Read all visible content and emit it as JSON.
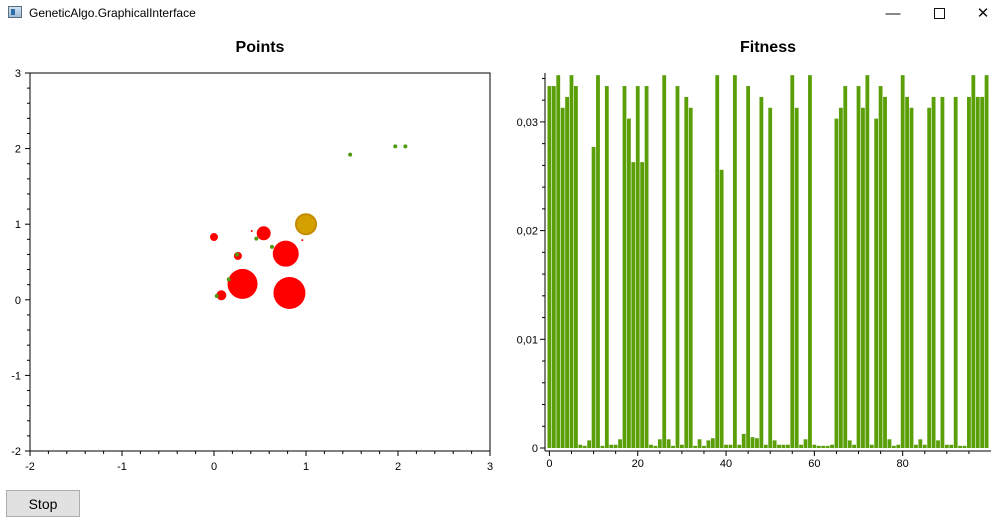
{
  "window": {
    "title": "GeneticAlgo.GraphicalInterface",
    "minimize_glyph": "—",
    "close_glyph": "✕",
    "icon": "app-window-icon"
  },
  "colors": {
    "red": "#ff0000",
    "green": "#4f9a10",
    "gold": "#d4a000",
    "bar": "#5a9e08"
  },
  "chart_data": [
    {
      "type": "scatter",
      "title": "Points",
      "xlim": [
        -2,
        3
      ],
      "ylim": [
        -2,
        3
      ],
      "x_ticks": [
        "-2",
        "-1",
        "0",
        "1",
        "2",
        "3"
      ],
      "y_ticks": [
        "3",
        "2",
        "1",
        "0",
        "-1",
        "-2"
      ],
      "series": [
        {
          "color": "red",
          "points": [
            {
              "x": 0.0,
              "y": 0.83,
              "r": 4
            },
            {
              "x": 0.54,
              "y": 0.88,
              "r": 7
            },
            {
              "x": 0.78,
              "y": 0.61,
              "r": 13
            },
            {
              "x": 0.26,
              "y": 0.58,
              "r": 4
            },
            {
              "x": 0.31,
              "y": 0.21,
              "r": 15
            },
            {
              "x": 0.82,
              "y": 0.09,
              "r": 16
            },
            {
              "x": 0.08,
              "y": 0.06,
              "r": 5
            },
            {
              "x": 0.41,
              "y": 0.91,
              "r": 1
            },
            {
              "x": 0.96,
              "y": 0.79,
              "r": 1
            }
          ]
        },
        {
          "color": "gold",
          "points": [
            {
              "x": 1.0,
              "y": 1.0,
              "r": 10
            }
          ]
        },
        {
          "color": "green",
          "points": [
            {
              "x": 1.48,
              "y": 1.92,
              "r": 2
            },
            {
              "x": 1.97,
              "y": 2.03,
              "r": 2
            },
            {
              "x": 2.08,
              "y": 2.03,
              "r": 2
            },
            {
              "x": 0.46,
              "y": 0.81,
              "r": 2
            },
            {
              "x": 0.25,
              "y": 0.6,
              "r": 2
            },
            {
              "x": 0.16,
              "y": 0.27,
              "r": 2
            },
            {
              "x": 0.03,
              "y": 0.05,
              "r": 2
            },
            {
              "x": 0.63,
              "y": 0.7,
              "r": 2
            }
          ]
        }
      ]
    },
    {
      "type": "bar",
      "title": "Fitness",
      "xlim": [
        -1,
        100
      ],
      "ylim": [
        0,
        0.0345
      ],
      "x_ticks": [
        "0",
        "20",
        "40",
        "60",
        "80"
      ],
      "y_ticks": [
        "0,03",
        "0,02",
        "0,01",
        "0"
      ],
      "values": [
        0.0333,
        0.0333,
        0.0343,
        0.0313,
        0.0323,
        0.0343,
        0.0333,
        0.0003,
        0.0002,
        0.0007,
        0.0277,
        0.0343,
        0.0002,
        0.0333,
        0.0003,
        0.0003,
        0.0008,
        0.0333,
        0.0303,
        0.0263,
        0.0333,
        0.0263,
        0.0333,
        0.0003,
        0.0002,
        0.0008,
        0.0343,
        0.0008,
        0.0002,
        0.0333,
        0.0003,
        0.0323,
        0.0313,
        0.0002,
        0.0008,
        0.0002,
        0.0007,
        0.0009,
        0.0343,
        0.0256,
        0.0003,
        0.0003,
        0.0343,
        0.0003,
        0.0013,
        0.0333,
        0.001,
        0.0009,
        0.0323,
        0.0003,
        0.0313,
        0.0007,
        0.0003,
        0.0003,
        0.0003,
        0.0343,
        0.0313,
        0.0003,
        0.0008,
        0.0343,
        0.0003,
        0.0002,
        0.0002,
        0.0002,
        0.0003,
        0.0303,
        0.0313,
        0.0333,
        0.0007,
        0.0003,
        0.0333,
        0.0313,
        0.0343,
        0.0003,
        0.0303,
        0.0333,
        0.0323,
        0.0008,
        0.0002,
        0.0003,
        0.0343,
        0.0323,
        0.0313,
        0.0003,
        0.0008,
        0.0003,
        0.0313,
        0.0323,
        0.0007,
        0.0323,
        0.0003,
        0.0003,
        0.0323,
        0.0002,
        0.0002,
        0.0323,
        0.0343,
        0.0323,
        0.0323,
        0.0343
      ]
    }
  ],
  "footer": {
    "stop_label": "Stop"
  }
}
